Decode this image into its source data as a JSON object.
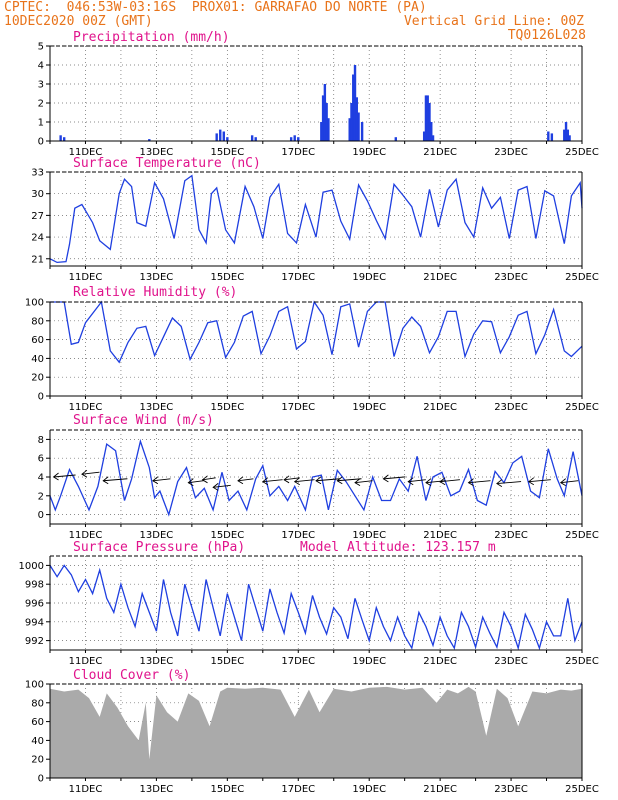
{
  "header": {
    "line1_left": "CPTEC:  046:53W-03:16S  PROX01: GARRAFAO DO NORTE (PA)",
    "line2_left": "10DEC2020 00Z (GMT)",
    "line2_right": "Vertical Grid Line: 00Z",
    "line3_right": "TQ0126L028"
  },
  "colors": {
    "header": "#e8731a",
    "titles": "#e0138c",
    "series": "#1f3fe0",
    "cloud": "#aaaaaa",
    "arrows": "#000000"
  },
  "x_ticks": [
    "11DEC",
    "13DEC",
    "15DEC",
    "17DEC",
    "19DEC",
    "21DEC",
    "23DEC",
    "25DEC"
  ],
  "chart_data": [
    {
      "id": "precip",
      "type": "bar",
      "title": "Precipitation (mm/h)",
      "ylim": [
        0,
        5
      ],
      "yticks": [
        0,
        1,
        2,
        3,
        4,
        5
      ],
      "x_unit": "days from 10DEC2020 00Z",
      "bars": [
        [
          0.3,
          0.3
        ],
        [
          0.4,
          0.2
        ],
        [
          2.8,
          0.1
        ],
        [
          4.7,
          0.4
        ],
        [
          4.8,
          0.6
        ],
        [
          4.9,
          0.5
        ],
        [
          5.0,
          0.2
        ],
        [
          5.7,
          0.3
        ],
        [
          5.8,
          0.2
        ],
        [
          6.8,
          0.2
        ],
        [
          6.9,
          0.3
        ],
        [
          7.0,
          0.2
        ],
        [
          7.65,
          1.0
        ],
        [
          7.7,
          2.4
        ],
        [
          7.75,
          3.0
        ],
        [
          7.8,
          2.0
        ],
        [
          7.85,
          1.2
        ],
        [
          8.45,
          1.2
        ],
        [
          8.5,
          2.0
        ],
        [
          8.55,
          3.5
        ],
        [
          8.6,
          4.0
        ],
        [
          8.65,
          2.3
        ],
        [
          8.7,
          1.5
        ],
        [
          8.8,
          1.0
        ],
        [
          9.75,
          0.2
        ],
        [
          10.55,
          0.5
        ],
        [
          10.6,
          2.4
        ],
        [
          10.65,
          2.4
        ],
        [
          10.7,
          2.0
        ],
        [
          10.75,
          1.0
        ],
        [
          10.8,
          0.3
        ],
        [
          14.05,
          0.5
        ],
        [
          14.15,
          0.4
        ],
        [
          14.5,
          0.6
        ],
        [
          14.55,
          1.0
        ],
        [
          14.6,
          0.6
        ],
        [
          14.65,
          0.3
        ]
      ]
    },
    {
      "id": "temp",
      "type": "line",
      "title": "Surface Temperature (nC)",
      "ylim": [
        20,
        33
      ],
      "yticks": [
        21,
        24,
        27,
        30,
        33
      ],
      "x": [
        0,
        0.2,
        0.45,
        0.55,
        0.7,
        0.9,
        1.2,
        1.4,
        1.7,
        1.95,
        2.1,
        2.3,
        2.45,
        2.7,
        2.95,
        3.2,
        3.5,
        3.8,
        4.0,
        4.2,
        4.4,
        4.55,
        4.7,
        4.95,
        5.2,
        5.5,
        5.75,
        6.0,
        6.2,
        6.45,
        6.7,
        6.95,
        7.2,
        7.5,
        7.7,
        7.95,
        8.2,
        8.45,
        8.7,
        8.95,
        9.2,
        9.45,
        9.7,
        9.95,
        10.2,
        10.45,
        10.7,
        10.95,
        11.2,
        11.45,
        11.7,
        11.95,
        12.2,
        12.45,
        12.7,
        12.95,
        13.2,
        13.45,
        13.7,
        13.95,
        14.2,
        14.5,
        14.7,
        14.95,
        15.0
      ],
      "y": [
        21,
        20.5,
        20.6,
        23,
        28,
        28.5,
        26,
        23.5,
        22.3,
        30,
        32,
        31,
        26,
        25.5,
        31.5,
        29.3,
        23.8,
        31.8,
        32.5,
        25,
        23.2,
        30,
        30.8,
        25,
        23.2,
        31,
        28.2,
        23.8,
        29.5,
        31.3,
        24.5,
        23.2,
        28.5,
        24,
        30.2,
        30.5,
        26.2,
        23.7,
        31.2,
        29,
        26.3,
        23.8,
        31.3,
        29.8,
        28.2,
        24,
        30.6,
        25.4,
        30.5,
        32,
        26,
        24,
        30.8,
        28,
        29.5,
        23.8,
        30.5,
        31,
        23.8,
        30.4,
        29.7,
        23.1,
        29.7,
        31.5,
        28
      ]
    },
    {
      "id": "rh",
      "type": "line",
      "title": "Relative Humidity (%)",
      "ylim": [
        0,
        100
      ],
      "yticks": [
        0,
        20,
        40,
        60,
        80,
        100
      ],
      "x": [
        0,
        0.4,
        0.6,
        0.8,
        1.0,
        1.45,
        1.7,
        1.95,
        2.2,
        2.45,
        2.7,
        2.95,
        3.2,
        3.45,
        3.7,
        3.95,
        4.2,
        4.45,
        4.7,
        4.95,
        5.2,
        5.45,
        5.7,
        5.95,
        6.2,
        6.45,
        6.7,
        6.95,
        7.2,
        7.45,
        7.7,
        7.95,
        8.2,
        8.45,
        8.7,
        8.95,
        9.2,
        9.45,
        9.7,
        9.95,
        10.2,
        10.45,
        10.7,
        10.95,
        11.2,
        11.45,
        11.7,
        11.95,
        12.2,
        12.45,
        12.7,
        12.95,
        13.2,
        13.45,
        13.7,
        13.95,
        14.2,
        14.5,
        14.7,
        15.0
      ],
      "y": [
        100,
        100,
        55,
        57,
        78,
        100,
        48,
        36,
        57,
        72,
        74,
        43,
        63,
        83,
        74,
        39,
        57,
        78,
        80,
        41,
        57,
        85,
        90,
        45,
        64,
        90,
        95,
        50,
        58,
        100,
        86,
        44,
        95,
        98,
        52,
        90,
        100,
        100,
        42,
        72,
        84,
        74,
        46,
        63,
        90,
        90,
        42,
        66,
        80,
        79,
        46,
        63,
        86,
        90,
        45,
        65,
        92,
        48,
        42,
        53
      ]
    },
    {
      "id": "wind",
      "type": "line",
      "title": "Surface Wind (m/s)",
      "ylim": [
        -1,
        9
      ],
      "yticks": [
        0,
        2,
        4,
        6,
        8
      ],
      "x": [
        0,
        0.15,
        0.3,
        0.55,
        0.8,
        1.1,
        1.35,
        1.6,
        1.85,
        2.1,
        2.3,
        2.55,
        2.8,
        2.95,
        3.1,
        3.35,
        3.6,
        3.85,
        4.1,
        4.35,
        4.6,
        4.85,
        5.05,
        5.3,
        5.55,
        5.8,
        6.0,
        6.2,
        6.45,
        6.7,
        6.9,
        7.2,
        7.4,
        7.65,
        7.85,
        8.1,
        8.35,
        8.6,
        8.85,
        9.1,
        9.35,
        9.6,
        9.85,
        10.1,
        10.35,
        10.6,
        10.8,
        11.05,
        11.3,
        11.55,
        11.8,
        12.05,
        12.3,
        12.55,
        12.8,
        13.05,
        13.3,
        13.55,
        13.8,
        14.05,
        14.3,
        14.5,
        14.75,
        15.0
      ],
      "y": [
        2,
        0.5,
        2,
        4.8,
        3,
        0.5,
        3,
        7.5,
        6.8,
        1.5,
        3.8,
        7.8,
        5,
        1.8,
        2.5,
        0,
        3.5,
        5,
        1.8,
        2.8,
        0.5,
        4.5,
        1.5,
        2.5,
        0.5,
        3.8,
        5.2,
        2,
        3,
        1.5,
        3,
        0.5,
        4,
        4.2,
        0.5,
        4.7,
        3.5,
        2,
        0.5,
        4,
        1.5,
        1.5,
        3.8,
        2.5,
        6.2,
        1.5,
        4,
        4.5,
        2,
        2.5,
        4.8,
        1.5,
        1,
        4.6,
        3.4,
        5.5,
        6.2,
        2.5,
        1.8,
        7,
        3.8,
        2,
        6.7,
        2
      ]
    },
    {
      "id": "pressure",
      "type": "line",
      "title": "Surface Pressure (hPa)",
      "annotation": "Model Altitude: 123.157 m",
      "ylim": [
        991,
        1001
      ],
      "yticks": [
        992,
        994,
        996,
        998,
        1000
      ],
      "x": [
        0,
        0.2,
        0.4,
        0.6,
        0.8,
        1.0,
        1.2,
        1.4,
        1.6,
        1.8,
        2.0,
        2.2,
        2.4,
        2.6,
        2.8,
        3.0,
        3.2,
        3.4,
        3.6,
        3.8,
        4.0,
        4.2,
        4.4,
        4.6,
        4.8,
        5.0,
        5.2,
        5.4,
        5.6,
        5.8,
        6.0,
        6.2,
        6.4,
        6.6,
        6.8,
        7.0,
        7.2,
        7.4,
        7.6,
        7.8,
        8.0,
        8.2,
        8.4,
        8.6,
        8.8,
        9.0,
        9.2,
        9.4,
        9.6,
        9.8,
        10.0,
        10.2,
        10.4,
        10.6,
        10.8,
        11.0,
        11.2,
        11.4,
        11.6,
        11.8,
        12.0,
        12.2,
        12.4,
        12.6,
        12.8,
        13.0,
        13.2,
        13.4,
        13.6,
        13.8,
        14.0,
        14.2,
        14.4,
        14.6,
        14.8,
        15.0
      ],
      "y": [
        1000,
        998.8,
        1000,
        999,
        997.2,
        998.5,
        997,
        999.5,
        996.5,
        995,
        998,
        995.5,
        993.5,
        997,
        995,
        993,
        998.5,
        995,
        992.5,
        998,
        995.5,
        993,
        998.5,
        995.5,
        992.5,
        997,
        994.5,
        992,
        998,
        995.5,
        993,
        997.5,
        995,
        992.8,
        997,
        995,
        992.8,
        996.8,
        994.5,
        992.7,
        995.5,
        994.5,
        992.2,
        996.5,
        994.2,
        992,
        995.5,
        993.5,
        992,
        994.5,
        992.5,
        991.2,
        995,
        993.5,
        991.5,
        994.5,
        992.5,
        991.2,
        995,
        993.5,
        991.3,
        994.5,
        992.8,
        991.3,
        995,
        993.5,
        991.2,
        994.8,
        993.2,
        991.2,
        994,
        992.5,
        992.5,
        996.5,
        992,
        994
      ]
    },
    {
      "id": "cloud",
      "type": "area",
      "title": "Cloud Cover (%)",
      "ylim": [
        0,
        100
      ],
      "yticks": [
        0,
        20,
        40,
        60,
        80,
        100
      ],
      "x": [
        0,
        0.4,
        0.8,
        1.1,
        1.4,
        1.6,
        1.9,
        2.2,
        2.5,
        2.7,
        2.8,
        3.0,
        3.3,
        3.6,
        3.9,
        4.2,
        4.5,
        4.8,
        5.0,
        5.5,
        6.0,
        6.5,
        6.9,
        7.3,
        7.6,
        8.0,
        8.5,
        9.0,
        9.5,
        10.0,
        10.5,
        10.9,
        11.2,
        11.5,
        11.8,
        12.0,
        12.3,
        12.6,
        12.9,
        13.2,
        13.6,
        14.0,
        14.4,
        14.7,
        15.0
      ],
      "y": [
        95,
        92,
        94,
        85,
        65,
        90,
        75,
        55,
        40,
        80,
        20,
        88,
        70,
        60,
        90,
        82,
        55,
        92,
        96,
        95,
        96,
        94,
        65,
        94,
        70,
        95,
        92,
        96,
        97,
        94,
        96,
        80,
        94,
        90,
        97,
        92,
        45,
        95,
        85,
        55,
        92,
        90,
        94,
        93,
        95
      ]
    }
  ],
  "wind_vectors": {
    "description": "arrows drawn along wind line",
    "points": [
      [
        0.1,
        4.0,
        10
      ],
      [
        0.9,
        4.3,
        8
      ],
      [
        1.5,
        3.6,
        11
      ],
      [
        2.9,
        3.6,
        8
      ],
      [
        3.9,
        3.4,
        7
      ],
      [
        4.3,
        3.7,
        6
      ],
      [
        4.6,
        2.9,
        8
      ],
      [
        5.3,
        3.6,
        7
      ],
      [
        6.0,
        3.5,
        9
      ],
      [
        6.6,
        3.7,
        7
      ],
      [
        6.9,
        3.5,
        9
      ],
      [
        7.5,
        3.6,
        11
      ],
      [
        8.1,
        3.6,
        11
      ],
      [
        8.6,
        3.4,
        8
      ],
      [
        9.4,
        3.8,
        10
      ],
      [
        10.1,
        3.5,
        8
      ],
      [
        10.6,
        3.4,
        9
      ],
      [
        11.0,
        3.5,
        9
      ],
      [
        11.8,
        3.4,
        10
      ],
      [
        12.6,
        3.3,
        11
      ],
      [
        13.5,
        3.5,
        10
      ],
      [
        14.4,
        3.4,
        8
      ]
    ]
  }
}
